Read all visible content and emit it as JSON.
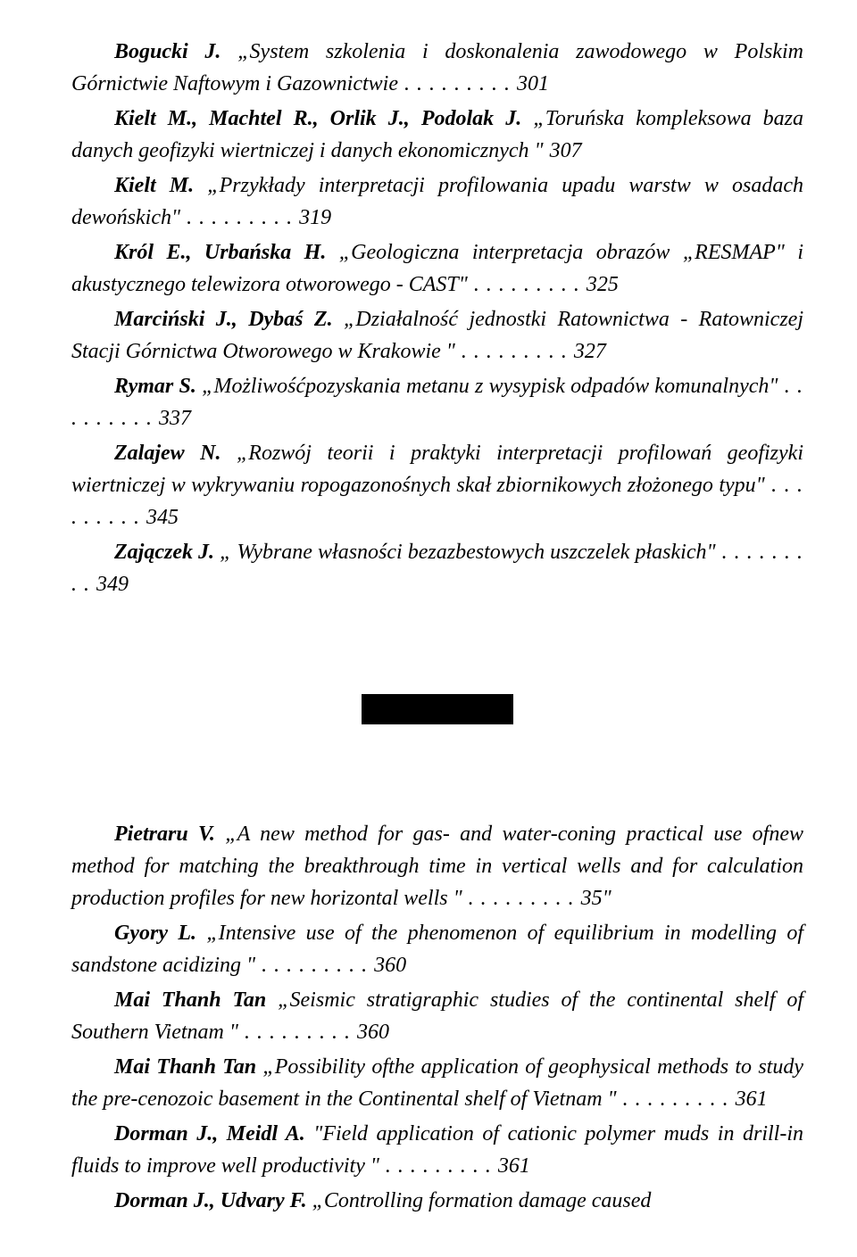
{
  "section1": [
    {
      "author": "Bogucki J.",
      "title": "„System szkolenia i doskonalenia zawodowego w Polskim Górnictwie Naftowym i Gazownictwie",
      "page": "301"
    },
    {
      "author": "Kielt M., Machtel R., Orlik J., Podolak J.",
      "title": "„Toruńska kompleksowa baza danych geofizyki wiertniczej i danych ekonomicznych \"",
      "page": "307",
      "nodots": true
    },
    {
      "author": "Kielt M.",
      "title": "„Przykłady interpretacji profilowania upadu warstw w osadach dewońskich\"",
      "page": "319"
    },
    {
      "author": "Król E., Urbańska H.",
      "title": "„Geologiczna interpretacja obrazów „RESMAP\" i akustycznego telewizora otworowego - CAST\"",
      "page": "325"
    },
    {
      "author": "Marciński J., Dybaś Z.",
      "title": "„Działalność jednostki Ratownictwa - Ratowniczej Stacji Górnictwa Otworowego w Krakowie \"",
      "page": "327"
    },
    {
      "author": "Rymar S.",
      "title": "„Możliwośćpozyskania metanu z wysypisk odpadów komunalnych\"",
      "page": "337"
    },
    {
      "author": "Zalajew N.",
      "title": "„Rozwój teorii i praktyki interpretacji profilowań geofizyki wiertniczej w wykrywaniu ropogazonośnych skał zbiornikowych złożonego typu\"",
      "page": "345"
    },
    {
      "author": "Zajączek J.",
      "title": "„ Wybrane własności bezazbestowych uszczelek płaskich\"",
      "page": "349"
    }
  ],
  "section2": [
    {
      "author": "Pietraru V.",
      "title": "„A new method for gas- and water-coning practical use ofnew method for matching the breakthrough time in vertical wells and for calculation production profiles for new horizontal wells \"",
      "page": "35\""
    },
    {
      "author": "Gyory L.",
      "title": "„Intensive use of the phenomenon of equilibrium in modelling of sandstone acidizing \"",
      "page": "360"
    },
    {
      "author": "Mai Thanh Tan",
      "title": "„Seismic stratigraphic studies of the continental shelf of Southern Vietnam \"",
      "page": "360"
    },
    {
      "author": "Mai Thanh Tan",
      "title": "„Possibility ofthe application of geophysical methods to study the pre-cenozoic basement in the Continental shelf of Vietnam \"",
      "page": "361"
    },
    {
      "author": "Dorman J., Meidl A.",
      "title": "\"Field application of cationic polymer muds in drill-in fluids to improve well productivity \"",
      "page": "361"
    },
    {
      "author": "Dorman J., Udvary F.",
      "title": "„Controlling formation damage caused",
      "page": "",
      "continues": true
    }
  ]
}
